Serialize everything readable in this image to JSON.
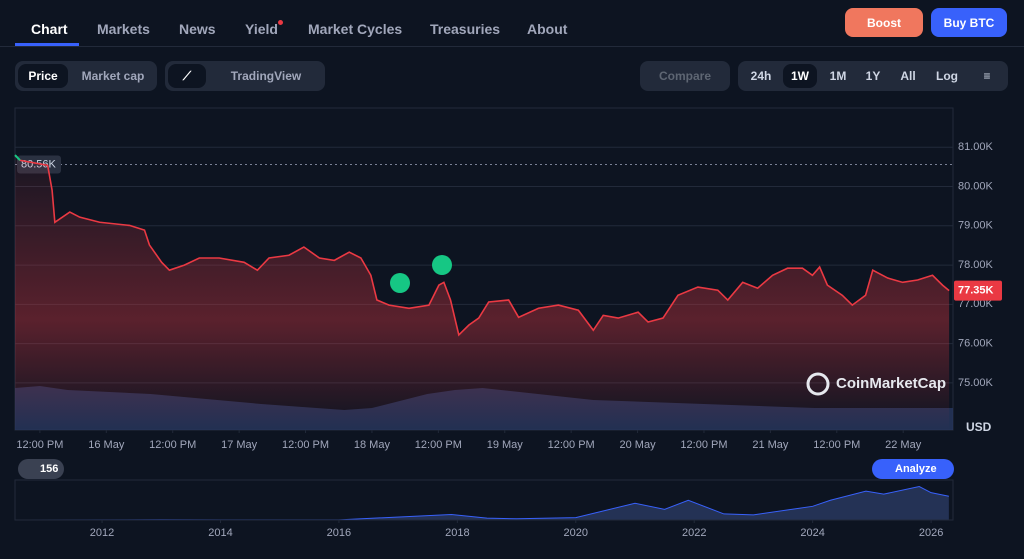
{
  "nav": {
    "tabs": [
      "Chart",
      "Markets",
      "News",
      "Yield",
      "Market Cycles",
      "Treasuries",
      "About"
    ],
    "boost": "Boost",
    "buy": "Buy BTC"
  },
  "toolbar": {
    "price": "Price",
    "market_cap": "Market cap",
    "tradingview": "TradingView",
    "compare": "Compare",
    "ranges": [
      "24h",
      "1W",
      "1M",
      "1Y",
      "All"
    ],
    "log": "Log"
  },
  "chart_data": {
    "type": "line",
    "currency": "USD",
    "watermark": "CoinMarketCap",
    "color": "#ea3943",
    "start_color": "#16c784",
    "xlim": [
      -4.5,
      165
    ],
    "ylim": [
      73800,
      82000
    ],
    "yticks": [
      {
        "value": 75000,
        "label": "75.00K"
      },
      {
        "value": 76000,
        "label": "76.00K"
      },
      {
        "value": 77000,
        "label": "77.00K"
      },
      {
        "value": 78000,
        "label": "78.00K"
      },
      {
        "value": 79000,
        "label": "79.00K"
      },
      {
        "value": 80000,
        "label": "80.00K"
      },
      {
        "value": 81000,
        "label": "81.00K"
      }
    ],
    "xticks": [
      {
        "value": 0,
        "label": "12:00 PM"
      },
      {
        "value": 12,
        "label": "16 May"
      },
      {
        "value": 24,
        "label": "12:00 PM"
      },
      {
        "value": 36,
        "label": "17 May"
      },
      {
        "value": 48,
        "label": "12:00 PM"
      },
      {
        "value": 60,
        "label": "18 May"
      },
      {
        "value": 72,
        "label": "12:00 PM"
      },
      {
        "value": 84,
        "label": "19 May"
      },
      {
        "value": 96,
        "label": "12:00 PM"
      },
      {
        "value": 108,
        "label": "20 May"
      },
      {
        "value": 120,
        "label": "12:00 PM"
      },
      {
        "value": 132,
        "label": "21 May"
      },
      {
        "value": 144,
        "label": "12:00 PM"
      },
      {
        "value": 156,
        "label": "22 May"
      }
    ],
    "reference": {
      "value": 80560,
      "label": "80.56K"
    },
    "last_label": "77.35K",
    "x": [
      -4.5,
      -3.6,
      1.4,
      2.2,
      2.7,
      5.4,
      7.2,
      10.8,
      16.2,
      18.9,
      19.8,
      22.0,
      23.4,
      26.1,
      28.8,
      32.4,
      36.9,
      39.3,
      41.4,
      45.0,
      47.7,
      50.5,
      53.2,
      55.9,
      58.0,
      59.8,
      60.9,
      63.1,
      66.7,
      70.3,
      72.1,
      73.0,
      74.2,
      75.7,
      77.5,
      79.3,
      81.1,
      84.7,
      86.5,
      90.1,
      93.7,
      97.3,
      100.0,
      101.8,
      104.5,
      108.1,
      109.9,
      112.6,
      115.3,
      118.9,
      122.5,
      124.3,
      127.0,
      129.7,
      132.4,
      135.1,
      137.8,
      139.6,
      140.9,
      142.3,
      145.0,
      146.8,
      149.2,
      150.5,
      153.2,
      155.9,
      158.6,
      161.3,
      163.1,
      164.3
    ],
    "values": [
      80800,
      80670,
      80540,
      79910,
      79090,
      79350,
      79220,
      79090,
      79010,
      78890,
      78510,
      78070,
      77870,
      78000,
      78180,
      78180,
      78070,
      77870,
      78180,
      78250,
      78460,
      78180,
      78120,
      78330,
      78180,
      77740,
      77110,
      76980,
      76900,
      76980,
      77490,
      77560,
      77110,
      76220,
      76470,
      76650,
      77060,
      77110,
      76670,
      76900,
      76980,
      76850,
      76340,
      76720,
      76650,
      76800,
      76550,
      76650,
      77230,
      77440,
      77360,
      77110,
      77560,
      77410,
      77740,
      77920,
      77920,
      77740,
      77950,
      77490,
      77230,
      76980,
      77230,
      77870,
      77670,
      77560,
      77620,
      77740,
      77490,
      77350
    ],
    "volume": {
      "vlim": [
        0,
        100
      ],
      "x": [
        -4.5,
        0,
        5,
        20,
        40,
        55,
        60,
        70,
        75,
        80,
        100,
        120,
        140,
        165
      ],
      "values": [
        42,
        44,
        40,
        36,
        26,
        20,
        22,
        36,
        40,
        42,
        30,
        26,
        22,
        22
      ]
    }
  },
  "navigator": {
    "type": "area",
    "history": "156",
    "analyze": "Analyze",
    "xlim": [
      2010.53,
      2026.37
    ],
    "ylim": [
      0,
      125000
    ],
    "xticks": [
      2012,
      2014,
      2016,
      2018,
      2020,
      2022,
      2024,
      2026
    ],
    "x": [
      2010.6,
      2013,
      2014,
      2016,
      2017.9,
      2018.5,
      2019,
      2020,
      2021,
      2021.5,
      2021.9,
      2022.5,
      2023,
      2024,
      2024.3,
      2024.9,
      2025.2,
      2025.8,
      2026,
      2026.3
    ],
    "values": [
      0,
      800,
      500,
      500,
      18000,
      6000,
      4000,
      8000,
      55000,
      35000,
      65000,
      20000,
      17000,
      45000,
      65000,
      95000,
      85000,
      110000,
      90000,
      78000
    ]
  }
}
